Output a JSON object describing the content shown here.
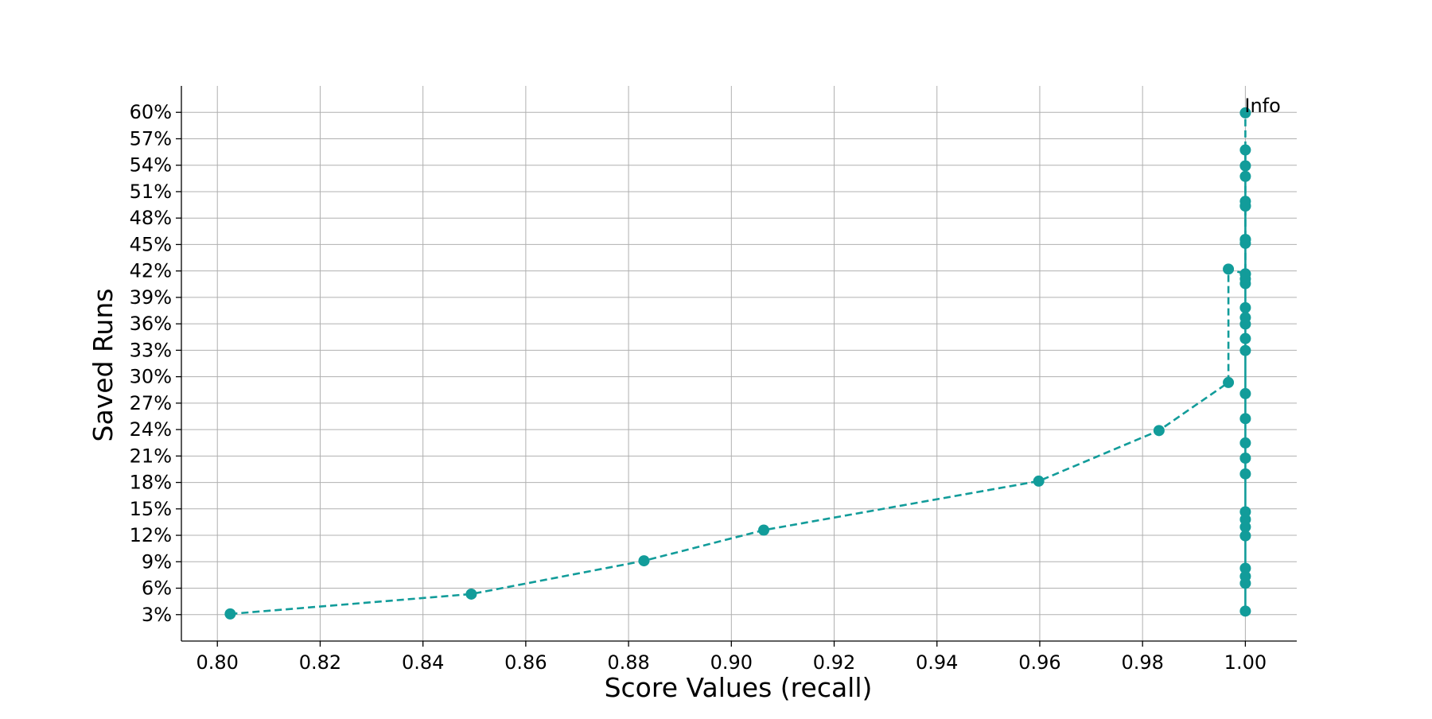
{
  "chart_data": {
    "type": "line",
    "title": "",
    "xlabel": "Score Values (recall)",
    "ylabel": "Saved Runs",
    "xlim": [
      0.793,
      1.01
    ],
    "ylim": [
      0.0,
      0.63
    ],
    "x_ticks": [
      0.8,
      0.82,
      0.84,
      0.86,
      0.88,
      0.9,
      0.92,
      0.94,
      0.96,
      0.98,
      1.0
    ],
    "x_tick_labels": [
      "0.80",
      "0.82",
      "0.84",
      "0.86",
      "0.88",
      "0.90",
      "0.92",
      "0.94",
      "0.96",
      "0.98",
      "1.00"
    ],
    "y_ticks": [
      0.03,
      0.06,
      0.09,
      0.12,
      0.15,
      0.18,
      0.21,
      0.24,
      0.27,
      0.3,
      0.33,
      0.36,
      0.39,
      0.42,
      0.45,
      0.48,
      0.51,
      0.54,
      0.57,
      0.6
    ],
    "y_tick_labels": [
      "3%",
      "6%",
      "9%",
      "12%",
      "15%",
      "18%",
      "21%",
      "24%",
      "27%",
      "30%",
      "33%",
      "36%",
      "39%",
      "42%",
      "45%",
      "48%",
      "51%",
      "54%",
      "57%",
      "60%"
    ],
    "grid": true,
    "color": "#129c9a",
    "series": [
      {
        "line_style": "dashed",
        "points": [
          [
            0.8025,
            0.0308
          ],
          [
            0.8494,
            0.0533
          ],
          [
            0.883,
            0.0911
          ],
          [
            0.9063,
            0.1259
          ],
          [
            0.9598,
            0.1815
          ],
          [
            0.9832,
            0.2389
          ],
          [
            0.9967,
            0.2934
          ],
          [
            0.9967,
            0.4221
          ],
          [
            1.0,
            0.4166
          ],
          [
            1.0,
            0.4557
          ],
          [
            1.0,
            0.4937
          ],
          [
            1.0,
            0.5994
          ]
        ]
      },
      {
        "line_style": "solid",
        "points": [
          [
            1.0,
            0.034
          ],
          [
            1.0,
            0.0655
          ],
          [
            1.0,
            0.0734
          ],
          [
            1.0,
            0.0826
          ],
          [
            1.0,
            0.1194
          ],
          [
            1.0,
            0.1295
          ],
          [
            1.0,
            0.138
          ],
          [
            1.0,
            0.1467
          ],
          [
            1.0,
            0.1897
          ],
          [
            1.0,
            0.2076
          ],
          [
            1.0,
            0.2248
          ],
          [
            1.0,
            0.2524
          ],
          [
            1.0,
            0.2808
          ],
          [
            1.0,
            0.3297
          ],
          [
            1.0,
            0.3433
          ],
          [
            1.0,
            0.3597
          ],
          [
            1.0,
            0.3671
          ],
          [
            1.0,
            0.3783
          ],
          [
            1.0,
            0.4057
          ],
          [
            1.0,
            0.411
          ],
          [
            1.0,
            0.4166
          ],
          [
            1.0,
            0.4514
          ],
          [
            1.0,
            0.4557
          ],
          [
            1.0,
            0.4937
          ],
          [
            1.0,
            0.499
          ],
          [
            1.0,
            0.5273
          ],
          [
            1.0,
            0.5393
          ],
          [
            1.0,
            0.5573
          ]
        ]
      }
    ],
    "annotations": [
      {
        "text": "Info",
        "x": 1.0,
        "y": 0.5994
      }
    ]
  }
}
